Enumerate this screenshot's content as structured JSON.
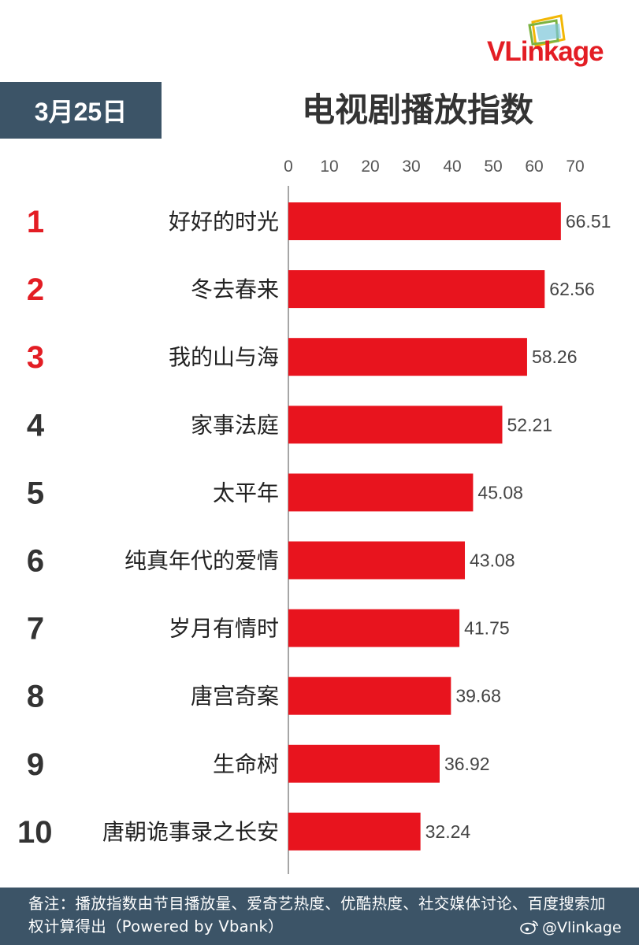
{
  "brand": {
    "name": "VLinkage"
  },
  "header": {
    "date": "3月25日",
    "title": "电视剧播放指数"
  },
  "chart_data": {
    "type": "bar",
    "orientation": "horizontal",
    "xlim": [
      0,
      70
    ],
    "ticks": [
      0,
      10,
      20,
      30,
      40,
      50,
      60,
      70
    ],
    "ranks": [
      "1",
      "2",
      "3",
      "4",
      "5",
      "6",
      "7",
      "8",
      "9",
      "10"
    ],
    "categories": [
      "好好的时光",
      "冬去春来",
      "我的山与海",
      "家事法庭",
      "太平年",
      "纯真年代的爱情",
      "岁月有情时",
      "唐宫奇案",
      "生命树",
      "唐朝诡事录之长安"
    ],
    "values": [
      66.51,
      62.56,
      58.26,
      52.21,
      45.08,
      43.08,
      41.75,
      39.68,
      36.92,
      32.24
    ],
    "value_labels": [
      "66.51",
      "62.56",
      "58.26",
      "52.21",
      "45.08",
      "43.08",
      "41.75",
      "39.68",
      "36.92",
      "32.24"
    ],
    "bar_color": "#e8141e",
    "top_rank_color": "#e31d24",
    "rank_color": "#333333",
    "grid": false,
    "legend": "none"
  },
  "footer": {
    "note": "备注：播放指数由节目播放量、爱奇艺热度、优酷热度、社交媒体讨论、百度搜索加权计算得出（Powered by Vbank）",
    "weibo_handle": "@Vlinkage"
  },
  "icons": {
    "logo": "vlinkage-logo-icon",
    "weibo": "weibo-icon"
  }
}
